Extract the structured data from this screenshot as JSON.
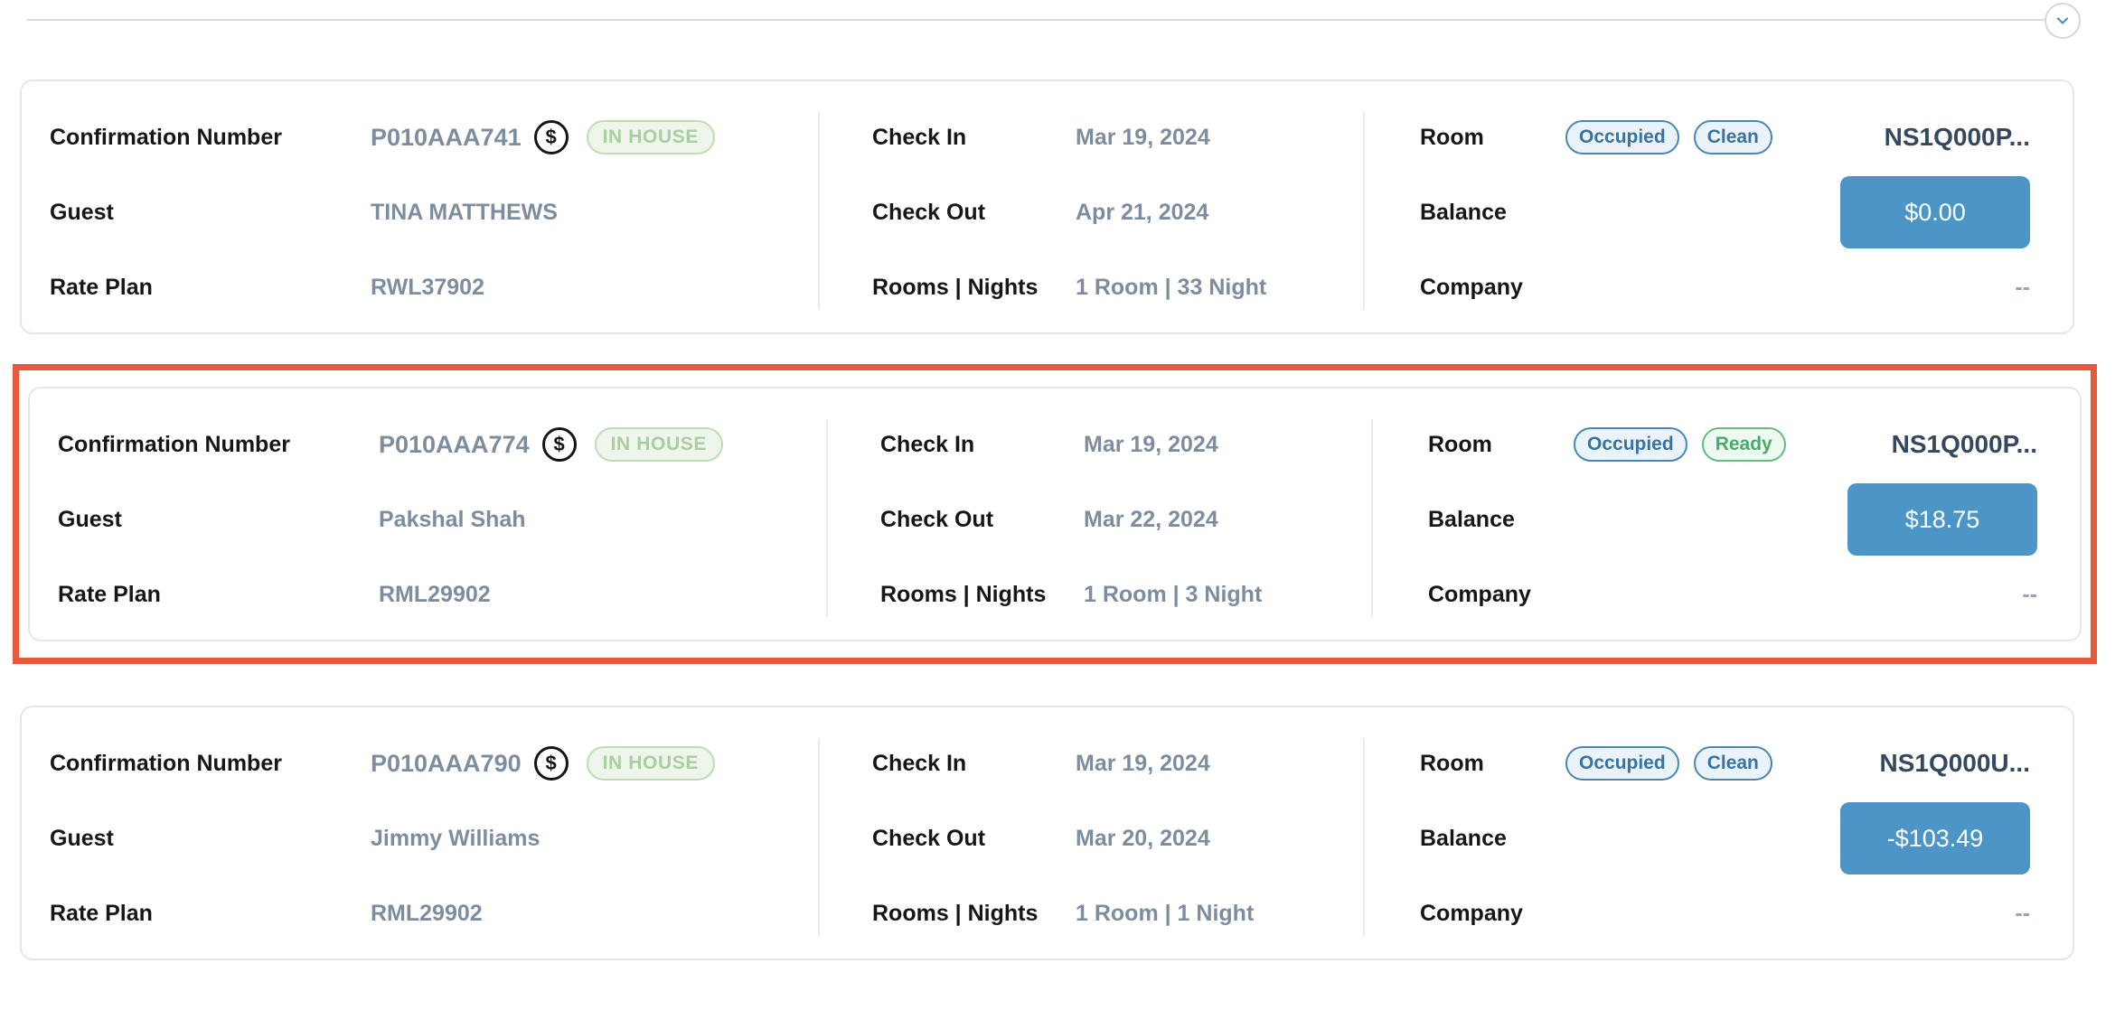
{
  "labels": {
    "confirmation_number": "Confirmation Number",
    "guest": "Guest",
    "rate_plan": "Rate Plan",
    "check_in": "Check In",
    "check_out": "Check Out",
    "rooms_nights": "Rooms | Nights",
    "room": "Room",
    "balance": "Balance",
    "company": "Company"
  },
  "icons": {
    "dollar": "$"
  },
  "reservations": [
    {
      "confirmation_number": "P010AAA741",
      "status": "IN HOUSE",
      "guest": "TINA MATTHEWS",
      "rate_plan": "RWL37902",
      "check_in": "Mar 19, 2024",
      "check_out": "Apr 21, 2024",
      "rooms_nights": "1 Room | 33 Night",
      "room_badges": [
        {
          "label": "Occupied",
          "tone": "blue"
        },
        {
          "label": "Clean",
          "tone": "blue"
        }
      ],
      "room_number": "NS1Q000P...",
      "balance": "$0.00",
      "company": "--",
      "highlighted": false
    },
    {
      "confirmation_number": "P010AAA774",
      "status": "IN HOUSE",
      "guest": "Pakshal Shah",
      "rate_plan": "RML29902",
      "check_in": "Mar 19, 2024",
      "check_out": "Mar 22, 2024",
      "rooms_nights": "1 Room | 3 Night",
      "room_badges": [
        {
          "label": "Occupied",
          "tone": "blue"
        },
        {
          "label": "Ready",
          "tone": "green"
        }
      ],
      "room_number": "NS1Q000P...",
      "balance": "$18.75",
      "company": "--",
      "highlighted": true
    },
    {
      "confirmation_number": "P010AAA790",
      "status": "IN HOUSE",
      "guest": "Jimmy Williams",
      "rate_plan": "RML29902",
      "check_in": "Mar 19, 2024",
      "check_out": "Mar 20, 2024",
      "rooms_nights": "1 Room | 1 Night",
      "room_badges": [
        {
          "label": "Occupied",
          "tone": "blue"
        },
        {
          "label": "Clean",
          "tone": "blue"
        }
      ],
      "room_number": "NS1Q000U...",
      "balance": "-$103.49",
      "company": "--",
      "highlighted": false
    }
  ],
  "colors": {
    "accent_blue": "#4C95C7",
    "badge_blue_text": "#38749F",
    "badge_blue_border": "#4B86B0",
    "badge_blue_bg": "#EAF2FA",
    "badge_green_text": "#4BA96B",
    "badge_green_border": "#67BA82",
    "badge_green_bg": "#ECFAF1",
    "inhouse_text": "#A9CEA0",
    "inhouse_border": "#BFDCB7",
    "inhouse_bg": "#EEF5EB",
    "highlight_orange": "#E8593C",
    "label_text": "#161616",
    "value_text": "#7E8D9E",
    "room_number_text": "#34495E",
    "card_border": "#E4E7E9",
    "divider": "#E9EBED",
    "top_line": "#DADDE0",
    "circle_border": "#D3D7DA",
    "chevron_blue": "#4A90C2"
  }
}
